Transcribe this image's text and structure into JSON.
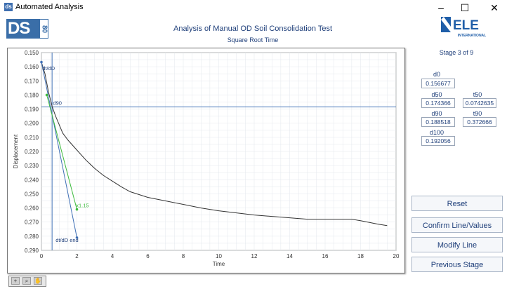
{
  "window": {
    "title": "Automated Analysis",
    "minimize": "–",
    "maximize": "☐",
    "close": "✕"
  },
  "logo": {
    "ds_text": "DS",
    "number": "80",
    "brand": "ELE",
    "brand_sub": "INTERNATIONAL"
  },
  "header": {
    "title": "Analysis of Manual OD Soil Consolidation Test",
    "subtitle": "Square Root Time"
  },
  "stage": "Stage 3 of 9",
  "values": {
    "d0": {
      "label": "d0",
      "value": "0.156677"
    },
    "d50": {
      "label": "d50",
      "value": "0.174366"
    },
    "t50": {
      "label": "t50",
      "value": "0.0742635"
    },
    "d90": {
      "label": "d90",
      "value": "0.188518"
    },
    "t90": {
      "label": "t90",
      "value": "0.372666"
    },
    "d100": {
      "label": "d100",
      "value": "0.192056"
    }
  },
  "buttons": {
    "reset": "Reset",
    "confirm": "Confirm Line/Values",
    "modify": "Modify Line",
    "previous": "Previous Stage"
  },
  "colors": {
    "accent": "#1f3f7a",
    "curve": "#333333",
    "blue_line": "#3f6fb5",
    "green_line": "#3dbb3d",
    "grid": "#e3e7ec"
  },
  "chart_data": {
    "type": "line",
    "xlabel": "Time",
    "ylabel": "Displacement",
    "xlim": [
      0,
      20
    ],
    "ylim": [
      0.15,
      0.29
    ],
    "y_inverted": true,
    "xticks": [
      0,
      2,
      4,
      6,
      8,
      10,
      12,
      14,
      16,
      18,
      20
    ],
    "yticks": [
      "0.150",
      "0.160",
      "0.170",
      "0.180",
      "0.190",
      "0.200",
      "0.210",
      "0.220",
      "0.230",
      "0.240",
      "0.250",
      "0.260",
      "0.270",
      "0.280",
      "0.290"
    ],
    "grid": true,
    "series": [
      {
        "kind": "curve",
        "x": [
          0,
          0.2,
          0.4,
          0.6,
          0.8,
          1.0,
          1.2,
          1.5,
          2.0,
          2.5,
          3.0,
          3.5,
          4.0,
          4.5,
          5.0,
          6.0,
          7.0,
          8.0,
          9.0,
          10.0,
          11.0,
          12.0,
          13.0,
          14.0,
          15.0,
          16.0,
          17.0,
          17.5,
          18.0,
          19.0,
          19.5
        ],
        "y": [
          0.1567,
          0.165,
          0.178,
          0.188,
          0.195,
          0.201,
          0.207,
          0.212,
          0.219,
          0.226,
          0.232,
          0.237,
          0.241,
          0.245,
          0.2485,
          0.2525,
          0.255,
          0.2575,
          0.26,
          0.262,
          0.2635,
          0.265,
          0.266,
          0.267,
          0.268,
          0.268,
          0.268,
          0.268,
          0.269,
          0.2715,
          0.2725
        ]
      },
      {
        "kind": "blue",
        "x": [
          0,
          2.0
        ],
        "y": [
          0.1567,
          0.281
        ]
      },
      {
        "kind": "green",
        "x": [
          0.3,
          2.0
        ],
        "y": [
          0.18,
          0.261
        ]
      }
    ],
    "hlines": [
      {
        "y": 0.1885
      }
    ],
    "vlines": [
      {
        "x": 0.6
      }
    ],
    "annotations": [
      {
        "text": "dt/dD",
        "x": 0.05,
        "y": 0.1625
      },
      {
        "text": "d90",
        "x": 0.65,
        "y": 0.187
      },
      {
        "text": "x1.15",
        "x": 1.95,
        "y": 0.2595,
        "color": "green"
      },
      {
        "text": "dt/dD end",
        "x": 0.8,
        "y": 0.284
      }
    ]
  }
}
